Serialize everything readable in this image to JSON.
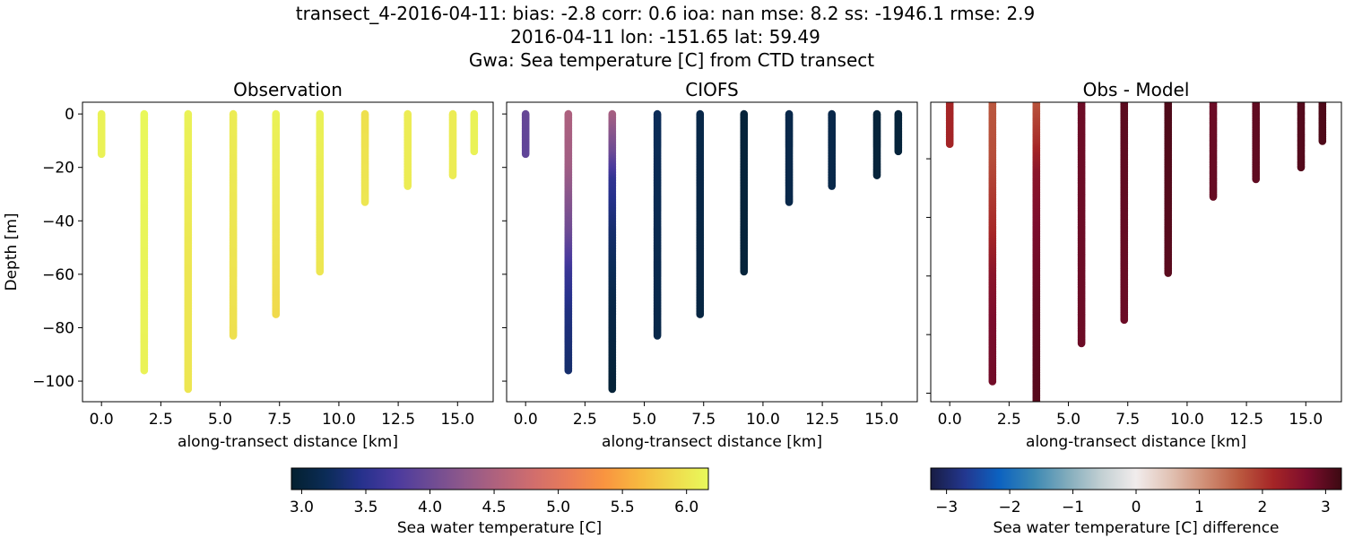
{
  "title_lines": [
    "transect_4-2016-04-11: bias: -2.8  corr: 0.6  ioa: nan  mse: 8.2  ss: -1946.1  rmse: 2.9",
    "2016-04-11 lon: -151.65 lat: 59.49",
    "Gwa: Sea temperature [C] from CTD transect"
  ],
  "chart_data": [
    {
      "type": "scatter",
      "title": "Observation",
      "xlabel": "along-transect distance [km]",
      "ylabel": "Depth [m]",
      "xlim": [
        -0.8,
        16.5
      ],
      "ylim": [
        -107.7,
        4.4
      ],
      "xticks": [
        "0.0",
        "2.5",
        "5.0",
        "7.5",
        "10.0",
        "12.5",
        "15.0"
      ],
      "yticks": [
        "0",
        "−20",
        "−40",
        "−60",
        "−80",
        "−100"
      ],
      "variable": "obs",
      "colormap": "thermal"
    },
    {
      "type": "scatter",
      "title": "CIOFS",
      "xlabel": "along-transect distance [km]",
      "ylabel": "",
      "xlim": [
        -0.8,
        16.5
      ],
      "ylim": [
        -107.7,
        4.4
      ],
      "xticks": [
        "0.0",
        "2.5",
        "5.0",
        "7.5",
        "10.0",
        "12.5",
        "15.0"
      ],
      "yticks": [],
      "variable": "model",
      "colormap": "thermal"
    },
    {
      "type": "scatter",
      "title": "Obs - Model",
      "xlabel": "along-transect distance [km]",
      "ylabel": "",
      "xlim": [
        -0.8,
        16.5
      ],
      "ylim": [
        -102.9,
        -0.7
      ],
      "xticks": [
        "0.0",
        "2.5",
        "5.0",
        "7.5",
        "10.0",
        "12.5",
        "15.0"
      ],
      "yticks": [],
      "variable": "diff",
      "colormap": "balance"
    }
  ],
  "stations": [
    {
      "distance_km": 0.0,
      "bottom_m": -15,
      "obs": [
        [
          0,
          6.1
        ],
        [
          -15,
          6.1
        ]
      ],
      "model": [
        [
          0,
          3.95
        ],
        [
          -15,
          3.9
        ]
      ]
    },
    {
      "distance_km": 1.8,
      "bottom_m": -96,
      "obs": [
        [
          0,
          6.15
        ],
        [
          -96,
          6.1
        ]
      ],
      "model": [
        [
          0,
          4.5
        ],
        [
          -20,
          4.4
        ],
        [
          -45,
          4.0
        ],
        [
          -60,
          3.6
        ],
        [
          -75,
          3.4
        ],
        [
          -96,
          3.3
        ]
      ]
    },
    {
      "distance_km": 3.65,
      "bottom_m": -103,
      "obs": [
        [
          0,
          6.1
        ],
        [
          -60,
          6.0
        ],
        [
          -103,
          6.0
        ]
      ],
      "model": [
        [
          0,
          4.45
        ],
        [
          -15,
          4.0
        ],
        [
          -25,
          3.55
        ],
        [
          -45,
          3.3
        ],
        [
          -70,
          3.1
        ],
        [
          -103,
          2.98
        ]
      ]
    },
    {
      "distance_km": 5.55,
      "bottom_m": -83,
      "obs": [
        [
          0,
          6.05
        ],
        [
          -83,
          5.95
        ]
      ],
      "model": [
        [
          0,
          3.2
        ],
        [
          -83,
          3.1
        ]
      ]
    },
    {
      "distance_km": 7.35,
      "bottom_m": -75,
      "obs": [
        [
          0,
          6.1
        ],
        [
          -40,
          6.0
        ],
        [
          -75,
          5.9
        ]
      ],
      "model": [
        [
          0,
          3.1
        ],
        [
          -75,
          3.05
        ]
      ]
    },
    {
      "distance_km": 9.2,
      "bottom_m": -59,
      "obs": [
        [
          0,
          6.1
        ],
        [
          -59,
          6.0
        ]
      ],
      "model": [
        [
          0,
          3.0
        ],
        [
          -59,
          3.0
        ]
      ]
    },
    {
      "distance_km": 11.1,
      "bottom_m": -33,
      "obs": [
        [
          0,
          5.95
        ],
        [
          -33,
          6.0
        ]
      ],
      "model": [
        [
          0,
          3.1
        ],
        [
          -33,
          3.1
        ]
      ]
    },
    {
      "distance_km": 12.9,
      "bottom_m": -27,
      "obs": [
        [
          0,
          6.05
        ],
        [
          -27,
          6.05
        ]
      ],
      "model": [
        [
          0,
          3.1
        ],
        [
          -27,
          3.1
        ]
      ]
    },
    {
      "distance_km": 14.8,
      "bottom_m": -23,
      "obs": [
        [
          0,
          6.05
        ],
        [
          -23,
          6.05
        ]
      ],
      "model": [
        [
          0,
          3.0
        ],
        [
          -23,
          3.0
        ]
      ]
    },
    {
      "distance_km": 15.7,
      "bottom_m": -14,
      "obs": [
        [
          0,
          6.1
        ],
        [
          -14,
          6.1
        ]
      ],
      "model": [
        [
          0,
          3.0
        ],
        [
          -14,
          3.0
        ]
      ]
    }
  ],
  "colorbars": [
    {
      "label": "Sea water temperature [C]",
      "range": [
        2.92,
        6.17
      ],
      "ticks": [
        "3.0",
        "3.5",
        "4.0",
        "4.5",
        "5.0",
        "5.5",
        "6.0"
      ],
      "tick_values": [
        3.0,
        3.5,
        4.0,
        4.5,
        5.0,
        5.5,
        6.0
      ],
      "colormap": "thermal"
    },
    {
      "label": "Sea water temperature [C] difference",
      "range": [
        -3.25,
        3.25
      ],
      "ticks": [
        "−3",
        "−2",
        "−1",
        "0",
        "1",
        "2",
        "3"
      ],
      "tick_values": [
        -3,
        -2,
        -1,
        0,
        1,
        2,
        3
      ],
      "colormap": "balance"
    }
  ],
  "colormaps": {
    "thermal": [
      "#04202f",
      "#0b2c57",
      "#26318c",
      "#4a3a9e",
      "#6d4b94",
      "#91598a",
      "#b3637c",
      "#d26e6c",
      "#ea7d58",
      "#f99440",
      "#f7b840",
      "#f0da4c",
      "#e8fa5b"
    ],
    "balance": [
      "#181c43",
      "#23378f",
      "#0c62c0",
      "#3b88b3",
      "#82acbc",
      "#c3d0d3",
      "#f1ecec",
      "#e1c2b4",
      "#d08f76",
      "#bb5a40",
      "#a52526",
      "#7d0d2d",
      "#3c0912"
    ]
  }
}
